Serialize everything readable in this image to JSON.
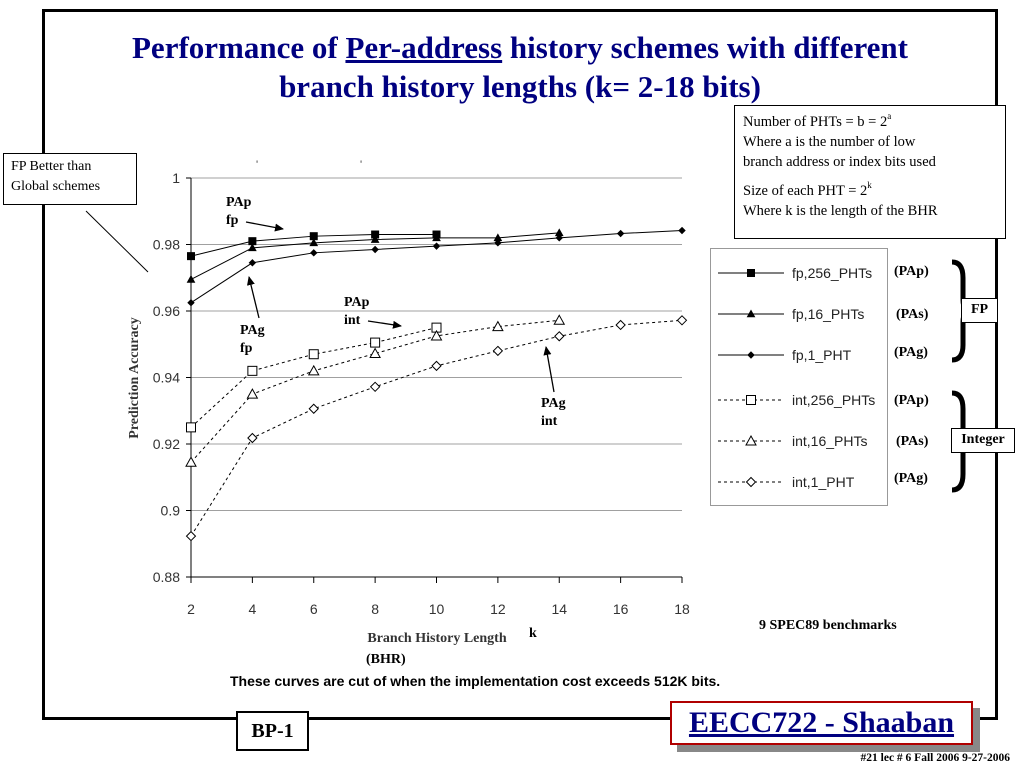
{
  "slide": {
    "title_before": "Performance of ",
    "title_underlined": "Per-address",
    "title_after": " history schemes with different",
    "title_line2": "branch history lengths (k= 2-18 bits)",
    "note_line1": "Number of PHTs = b = 2",
    "note_line1_sup": "a",
    "note_line2": "Where a is the number of low",
    "note_line3": "branch address or index bits used",
    "note_line4": "Size of each PHT = 2",
    "note_line4_sup": "k",
    "note_line5": "Where k is the length of the BHR",
    "fp_better_line1": "FP Better than",
    "fp_better_line2": "Global schemes",
    "fp_group_label": "FP",
    "integer_group_label": "Integer",
    "scheme_labels": [
      "(PAp)",
      "(PAs)",
      "(PAg)",
      "(PAp)",
      "(PAs)",
      "(PAg)"
    ],
    "benchmarks_note": "9 SPEC89 benchmarks",
    "k_label": "k",
    "bhr_label": "(BHR)",
    "cost_note": "These curves are cut of when the implementation cost exceeds 512K bits.",
    "bp_label": "BP-1",
    "course_label": "EECC722 - Shaaban",
    "footer": "#21   lec # 6   Fall 2006   9-27-2006"
  },
  "annotations": {
    "pap_fp_line1": "PAp",
    "pap_fp_line2": "fp",
    "pag_fp_line1": "PAg",
    "pag_fp_line2": "fp",
    "pap_int_line1": "PAp",
    "pap_int_line2": "int",
    "pag_int_line1": "PAg",
    "pag_int_line2": "int"
  },
  "chart_data": {
    "type": "line",
    "title": "",
    "xlabel": "Branch History Length",
    "ylabel": "Prediction Accuracy",
    "x_ticks": [
      2,
      4,
      6,
      8,
      10,
      12,
      14,
      16,
      18
    ],
    "y_ticks": [
      0.88,
      0.9,
      0.92,
      0.94,
      0.96,
      0.98,
      1
    ],
    "xlim": [
      2,
      18
    ],
    "ylim": [
      0.88,
      1
    ],
    "grid": "horizontal",
    "legend_position": "right",
    "series": [
      {
        "name": "fp,256_PHTs",
        "marker": "square-filled",
        "dash": "solid",
        "x": [
          2,
          4,
          6,
          8,
          10
        ],
        "y": [
          0.9765,
          0.981,
          0.9825,
          0.983,
          0.983
        ]
      },
      {
        "name": "fp,16_PHTs",
        "marker": "triangle-filled",
        "dash": "solid",
        "x": [
          2,
          4,
          6,
          8,
          10,
          12,
          14
        ],
        "y": [
          0.9695,
          0.979,
          0.9805,
          0.9815,
          0.982,
          0.982,
          0.9835
        ]
      },
      {
        "name": "fp,1_PHT",
        "marker": "diamond-filled",
        "dash": "solid",
        "x": [
          2,
          4,
          6,
          8,
          10,
          12,
          14,
          16,
          18
        ],
        "y": [
          0.9625,
          0.9745,
          0.9775,
          0.9785,
          0.9795,
          0.9805,
          0.982,
          0.9833,
          0.9842
        ]
      },
      {
        "name": "int,256_PHTs",
        "marker": "square-open",
        "dash": "dashed",
        "x": [
          2,
          4,
          6,
          8,
          10
        ],
        "y": [
          0.925,
          0.942,
          0.947,
          0.9505,
          0.955
        ]
      },
      {
        "name": "int,16_PHTs",
        "marker": "triangle-open",
        "dash": "dashed",
        "x": [
          2,
          4,
          6,
          8,
          10,
          12,
          14
        ],
        "y": [
          0.9145,
          0.935,
          0.942,
          0.9472,
          0.9525,
          0.9553,
          0.9572
        ]
      },
      {
        "name": "int,1_PHT",
        "marker": "diamond-open",
        "dash": "dashed",
        "x": [
          2,
          4,
          6,
          8,
          10,
          12,
          14,
          16,
          18
        ],
        "y": [
          0.8923,
          0.9218,
          0.9306,
          0.9372,
          0.9435,
          0.948,
          0.9524,
          0.9558,
          0.9572
        ]
      }
    ]
  }
}
